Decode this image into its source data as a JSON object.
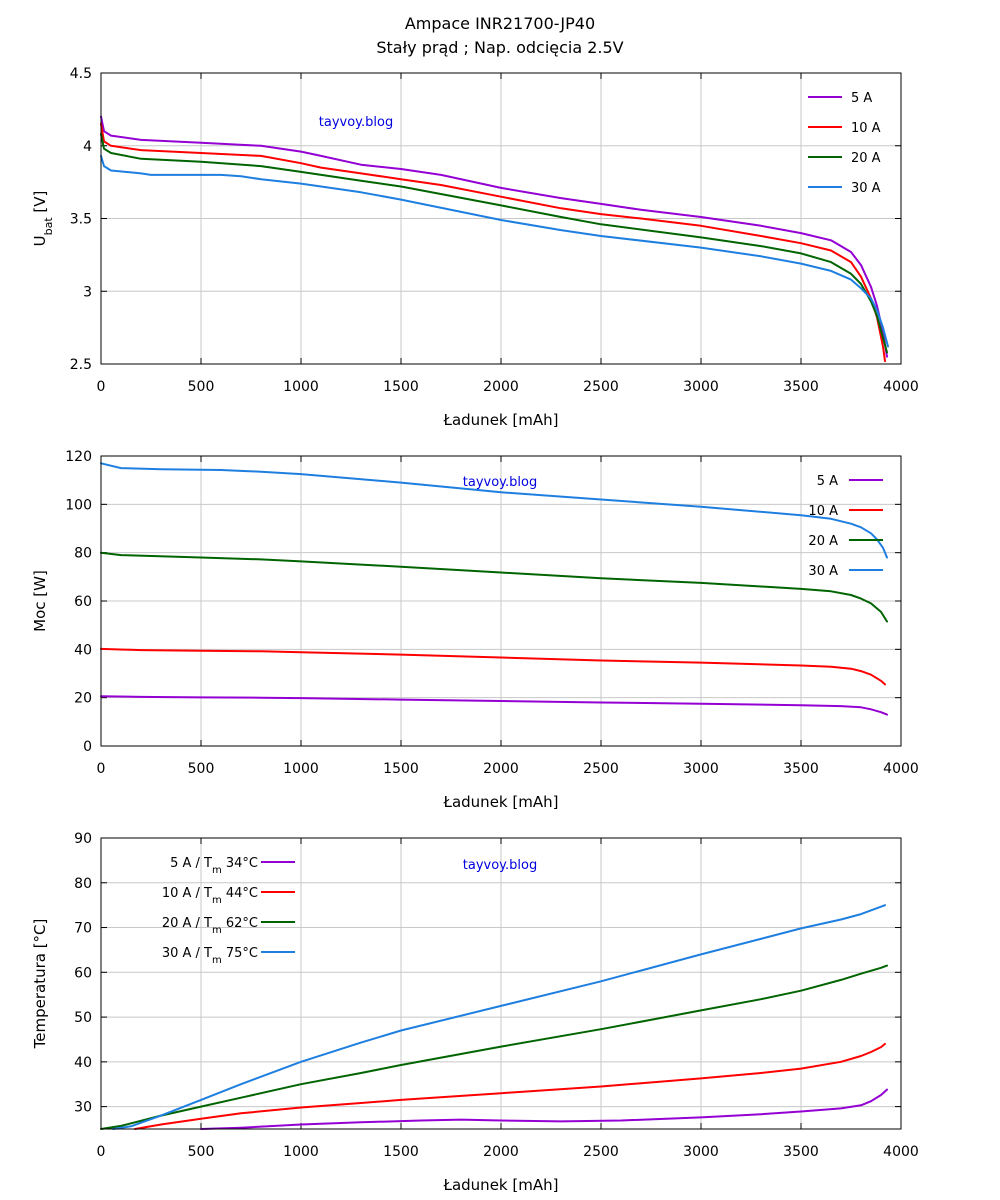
{
  "page": {
    "title_line1": "Ampace INR21700-JP40",
    "title_line2": "Stały prąd ; Nap. odcięcia 2.5V",
    "watermark": "tayvoy.blog"
  },
  "chart_data": [
    {
      "type": "line",
      "xlabel": "Ładunek [mAh]",
      "ylabel": "U",
      "ylabel_sub": "bat",
      "ylabel_unit": " [V]",
      "xlim": [
        0,
        4000
      ],
      "ylim": [
        2.5,
        4.5
      ],
      "xticks": [
        0,
        500,
        1000,
        1500,
        2000,
        2500,
        3000,
        3500,
        4000
      ],
      "yticks": [
        "2.5",
        "3",
        "3.5",
        "4",
        "4.5"
      ],
      "grid": true,
      "legend_position": "top-right",
      "series": [
        {
          "name": "5 A",
          "color": "#9400d3",
          "x": [
            0,
            15,
            50,
            200,
            500,
            800,
            1000,
            1100,
            1300,
            1500,
            1700,
            2000,
            2300,
            2500,
            2700,
            3000,
            3300,
            3500,
            3650,
            3750,
            3800,
            3850,
            3880,
            3910,
            3930
          ],
          "y": [
            4.2,
            4.1,
            4.07,
            4.04,
            4.02,
            4.0,
            3.96,
            3.93,
            3.87,
            3.84,
            3.8,
            3.71,
            3.64,
            3.6,
            3.56,
            3.51,
            3.45,
            3.4,
            3.35,
            3.27,
            3.18,
            3.03,
            2.9,
            2.72,
            2.55
          ]
        },
        {
          "name": "10 A",
          "color": "#ff0000",
          "x": [
            0,
            15,
            50,
            200,
            500,
            800,
            1000,
            1100,
            1300,
            1500,
            1700,
            2000,
            2300,
            2500,
            2700,
            3000,
            3300,
            3500,
            3650,
            3750,
            3800,
            3850,
            3880,
            3910,
            3920
          ],
          "y": [
            4.15,
            4.03,
            4.0,
            3.97,
            3.95,
            3.93,
            3.88,
            3.85,
            3.81,
            3.77,
            3.73,
            3.65,
            3.57,
            3.53,
            3.5,
            3.45,
            3.38,
            3.33,
            3.28,
            3.2,
            3.1,
            2.95,
            2.82,
            2.62,
            2.52
          ]
        },
        {
          "name": "20 A",
          "color": "#006400",
          "x": [
            0,
            15,
            50,
            200,
            500,
            800,
            1000,
            1300,
            1500,
            2000,
            2300,
            2500,
            3000,
            3300,
            3500,
            3650,
            3750,
            3800,
            3850,
            3880,
            3910,
            3930
          ],
          "y": [
            4.08,
            3.98,
            3.95,
            3.91,
            3.89,
            3.86,
            3.82,
            3.76,
            3.72,
            3.59,
            3.51,
            3.46,
            3.37,
            3.31,
            3.26,
            3.2,
            3.12,
            3.05,
            2.93,
            2.83,
            2.68,
            2.58
          ]
        },
        {
          "name": "30 A",
          "color": "#1e7fe0",
          "x": [
            0,
            15,
            50,
            200,
            250,
            600,
            700,
            800,
            1000,
            1300,
            1500,
            2000,
            2300,
            2500,
            3000,
            3300,
            3500,
            3650,
            3750,
            3800,
            3850,
            3880,
            3910,
            3935
          ],
          "y": [
            3.93,
            3.86,
            3.83,
            3.81,
            3.8,
            3.8,
            3.79,
            3.77,
            3.74,
            3.68,
            3.63,
            3.49,
            3.42,
            3.38,
            3.3,
            3.24,
            3.19,
            3.14,
            3.08,
            3.02,
            2.95,
            2.87,
            2.75,
            2.62
          ]
        }
      ]
    },
    {
      "type": "line",
      "xlabel": "Ładunek [mAh]",
      "ylabel": "Moc [W]",
      "xlim": [
        0,
        4000
      ],
      "ylim": [
        0,
        120
      ],
      "xticks": [
        0,
        500,
        1000,
        1500,
        2000,
        2500,
        3000,
        3500,
        4000
      ],
      "yticks": [
        0,
        20,
        40,
        60,
        80,
        100,
        120
      ],
      "grid": true,
      "legend_position": "top-right",
      "series": [
        {
          "name": "5 A",
          "color": "#9400d3",
          "x": [
            0,
            200,
            500,
            800,
            1000,
            1500,
            2000,
            2500,
            3000,
            3500,
            3700,
            3800,
            3850,
            3900,
            3930
          ],
          "y": [
            20.6,
            20.3,
            20.1,
            20.0,
            19.8,
            19.2,
            18.6,
            18.0,
            17.5,
            16.9,
            16.5,
            16.0,
            15.2,
            14.0,
            13.0
          ]
        },
        {
          "name": "10 A",
          "color": "#ff0000",
          "x": [
            0,
            200,
            500,
            800,
            1000,
            1500,
            2000,
            2500,
            3000,
            3500,
            3650,
            3750,
            3800,
            3850,
            3900,
            3920
          ],
          "y": [
            40.2,
            39.7,
            39.4,
            39.2,
            38.8,
            37.8,
            36.6,
            35.4,
            34.5,
            33.3,
            32.8,
            32.0,
            31.0,
            29.5,
            27.0,
            25.5
          ]
        },
        {
          "name": "20 A",
          "color": "#006400",
          "x": [
            0,
            100,
            500,
            800,
            1000,
            1500,
            2000,
            2500,
            3000,
            3500,
            3650,
            3750,
            3800,
            3850,
            3900,
            3930
          ],
          "y": [
            80.0,
            79.0,
            78.0,
            77.2,
            76.4,
            74.2,
            71.8,
            69.4,
            67.5,
            65.0,
            64.0,
            62.5,
            61.0,
            59.0,
            55.5,
            51.5
          ]
        },
        {
          "name": "30 A",
          "color": "#1e7fe0",
          "x": [
            0,
            100,
            300,
            600,
            800,
            1000,
            1500,
            2000,
            2500,
            3000,
            3500,
            3650,
            3750,
            3800,
            3850,
            3880,
            3910,
            3930
          ],
          "y": [
            117.0,
            115.0,
            114.5,
            114.2,
            113.5,
            112.5,
            109.0,
            105.0,
            102.0,
            99.0,
            95.5,
            94.0,
            92.0,
            90.5,
            88.0,
            85.5,
            82.0,
            78.0
          ]
        }
      ]
    },
    {
      "type": "line",
      "xlabel": "Ładunek [mAh]",
      "ylabel": "Temperatura [°C]",
      "xlim": [
        0,
        4000
      ],
      "ylim": [
        25,
        90
      ],
      "xticks": [
        0,
        500,
        1000,
        1500,
        2000,
        2500,
        3000,
        3500,
        4000
      ],
      "yticks": [
        30,
        40,
        50,
        60,
        70,
        80,
        90
      ],
      "grid": true,
      "legend_position": "top-left",
      "series": [
        {
          "name": "5 A",
          "legend_suffix": " 34°C",
          "color": "#9400d3",
          "x": [
            500,
            700,
            1000,
            1300,
            1600,
            1800,
            2000,
            2300,
            2600,
            3000,
            3300,
            3500,
            3700,
            3800,
            3850,
            3900,
            3930
          ],
          "y": [
            25,
            25.3,
            26.0,
            26.5,
            26.9,
            27.1,
            26.9,
            26.7,
            26.9,
            27.6,
            28.3,
            28.9,
            29.6,
            30.3,
            31.2,
            32.6,
            33.8
          ]
        },
        {
          "name": "10 A",
          "legend_suffix": " 44°C",
          "color": "#ff0000",
          "x": [
            170,
            300,
            500,
            700,
            1000,
            1300,
            1500,
            2000,
            2500,
            3000,
            3300,
            3500,
            3700,
            3800,
            3850,
            3900,
            3920
          ],
          "y": [
            25,
            26.0,
            27.3,
            28.5,
            29.8,
            30.8,
            31.5,
            33.0,
            34.5,
            36.3,
            37.5,
            38.5,
            40.0,
            41.3,
            42.2,
            43.3,
            44.0
          ]
        },
        {
          "name": "20 A",
          "legend_suffix": " 62°C",
          "color": "#006400",
          "x": [
            0,
            100,
            300,
            500,
            700,
            1000,
            1300,
            1500,
            2000,
            2500,
            3000,
            3300,
            3500,
            3700,
            3800,
            3900,
            3930
          ],
          "y": [
            25,
            25.7,
            28.0,
            30.0,
            32.0,
            35.0,
            37.5,
            39.3,
            43.4,
            47.3,
            51.5,
            54.0,
            55.9,
            58.3,
            59.7,
            61.0,
            61.5
          ]
        },
        {
          "name": "30 A",
          "legend_suffix": " 75°C",
          "color": "#1e7fe0",
          "x": [
            60,
            150,
            300,
            500,
            700,
            1000,
            1300,
            1500,
            2000,
            2500,
            3000,
            3500,
            3700,
            3800,
            3920
          ],
          "y": [
            25,
            25.6,
            28.0,
            31.5,
            35.0,
            40.0,
            44.3,
            47.0,
            52.5,
            58.0,
            64.0,
            69.8,
            71.8,
            73.0,
            75.0
          ]
        }
      ]
    }
  ]
}
